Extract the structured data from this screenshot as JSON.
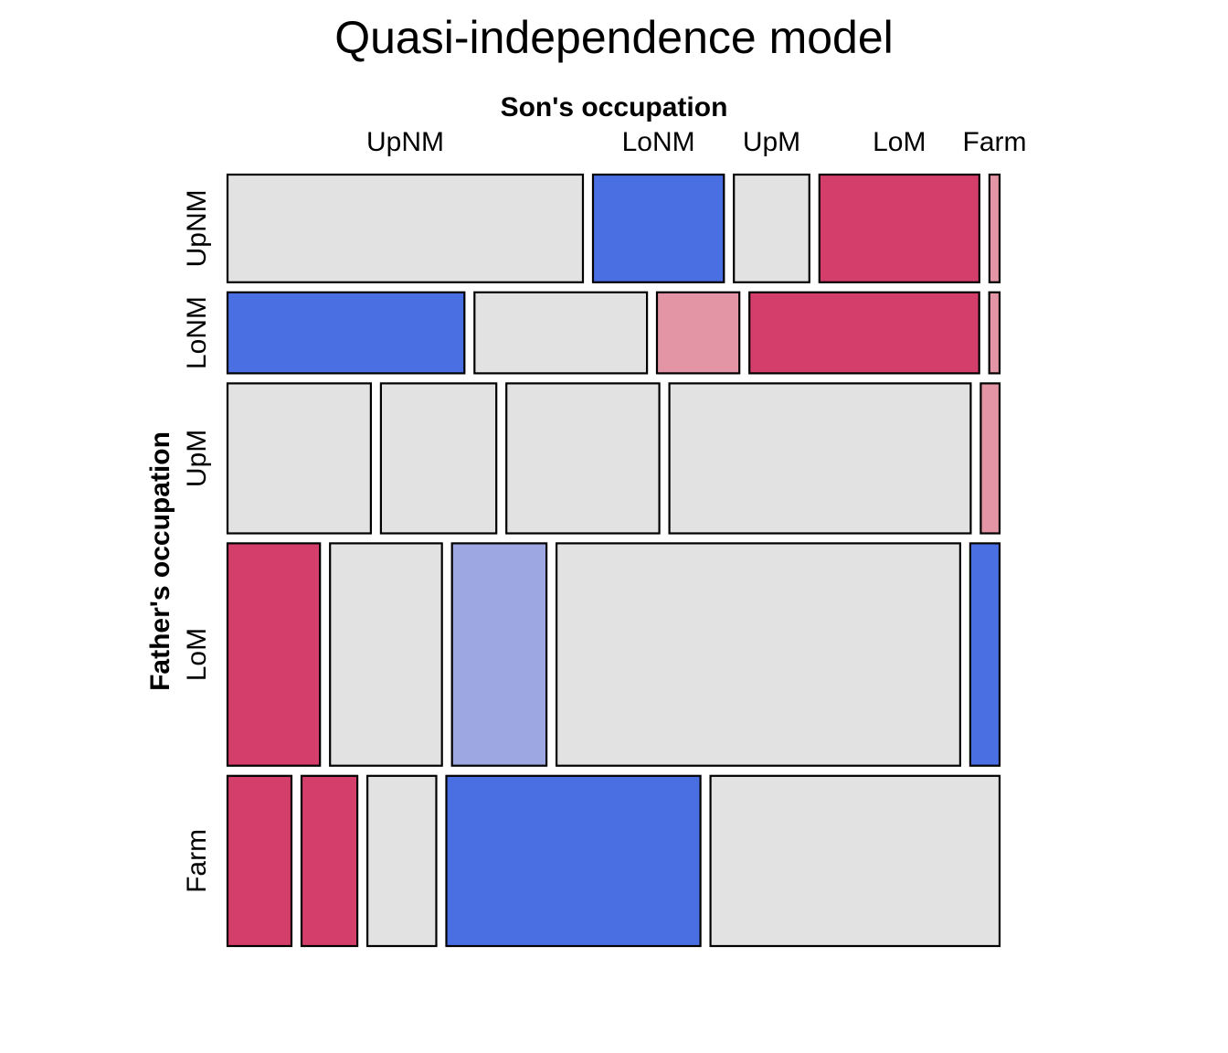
{
  "chart_data": {
    "type": "mosaic",
    "title": "Quasi-independence model",
    "xlabel": "Son's occupation",
    "ylabel": "Father's occupation",
    "row_labels": [
      "UpNM",
      "LoNM",
      "UpM",
      "LoM",
      "Farm"
    ],
    "col_labels": [
      "UpNM",
      "LoNM",
      "UpM",
      "LoM",
      "Farm"
    ],
    "row_proportions": [
      0.1269,
      0.0955,
      0.1768,
      0.2622,
      0.2007
    ],
    "cells": [
      [
        0.4627,
        0.1704,
        0.0982,
        0.2083,
        0.0132
      ],
      [
        0.3052,
        0.2222,
        0.1062,
        0.296,
        0.0133
      ],
      [
        0.1855,
        0.1494,
        0.1979,
        0.39,
        0.0244
      ],
      [
        0.1207,
        0.1462,
        0.1233,
        0.5271,
        0.0383
      ],
      [
        0.0828,
        0.0723,
        0.0892,
        0.3291,
        0.3744
      ]
    ],
    "residual_sign": [
      [
        "neutral",
        "neg-strong",
        "neutral",
        "pos-strong",
        "pos-light"
      ],
      [
        "neg-strong",
        "neutral",
        "pos-light",
        "pos-strong",
        "pos-light"
      ],
      [
        "neutral",
        "neutral",
        "neutral",
        "neutral",
        "pos-light"
      ],
      [
        "pos-strong",
        "neutral",
        "neg-light",
        "neutral",
        "neg-strong"
      ],
      [
        "pos-strong",
        "pos-strong",
        "neutral",
        "neg-strong",
        "neutral"
      ]
    ],
    "colors": {
      "neutral": "#e2e2e2",
      "pos-strong": "#d33f6a",
      "pos-light": "#e495a5",
      "neg-strong": "#4a6fe3",
      "neg-light": "#9da8e2"
    }
  }
}
